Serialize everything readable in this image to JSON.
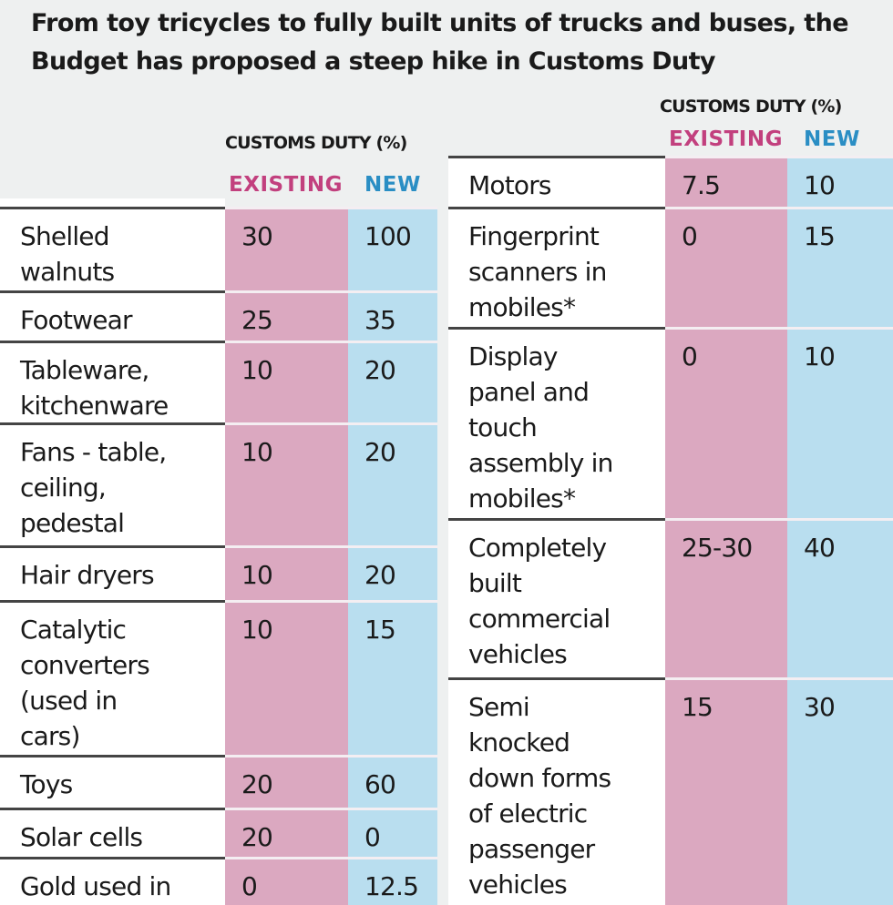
{
  "title_lines": [
    "From toy tricycles to fully built units of trucks and buses, the",
    "Budget has proposed a steep hike in Customs Duty"
  ],
  "left_table": {
    "header": "CUSTOMS DUTY (%)",
    "columns": [
      "EXISTING",
      "NEW"
    ],
    "rows": [
      {
        "label_lines": [
          "Shelled",
          "walnuts"
        ],
        "existing": "30",
        "new": "100"
      },
      {
        "label_lines": [
          "Footwear"
        ],
        "existing": "25",
        "new": "35"
      },
      {
        "label_lines": [
          "Tableware,",
          "kitchenware"
        ],
        "existing": "10",
        "new": "20"
      },
      {
        "label_lines": [
          "Fans - table,",
          "ceiling,",
          "pedestal"
        ],
        "existing": "10",
        "new": "20"
      },
      {
        "label_lines": [
          "Hair dryers"
        ],
        "existing": "10",
        "new": "20"
      },
      {
        "label_lines": [
          "Catalytic",
          "converters",
          "(used in",
          "cars)"
        ],
        "existing": "10",
        "new": "15"
      },
      {
        "label_lines": [
          "Toys"
        ],
        "existing": "20",
        "new": "60"
      },
      {
        "label_lines": [
          "Solar cells"
        ],
        "existing": "20",
        "new": "0"
      },
      {
        "label_lines": [
          "Gold used in"
        ],
        "existing": "0",
        "new": "12.5"
      }
    ]
  },
  "right_table": {
    "header": "CUSTOMS DUTY (%)",
    "columns": [
      "EXISTING",
      "NEW"
    ],
    "rows": [
      {
        "label_lines": [
          "Motors"
        ],
        "existing": "7.5",
        "new": "10"
      },
      {
        "label_lines": [
          "Fingerprint",
          "scanners in",
          "mobiles*"
        ],
        "existing": "0",
        "new": "15"
      },
      {
        "label_lines": [
          "Display",
          "panel and",
          "touch",
          "assembly in",
          "mobiles*"
        ],
        "existing": "0",
        "new": "10"
      },
      {
        "label_lines": [
          "Completely",
          "built",
          "commercial",
          "vehicles"
        ],
        "existing": "25-30",
        "new": "40"
      },
      {
        "label_lines": [
          "Semi",
          "knocked",
          "down forms",
          "of electric",
          "passenger",
          "vehicles"
        ],
        "existing": "15",
        "new": "30"
      }
    ]
  }
}
